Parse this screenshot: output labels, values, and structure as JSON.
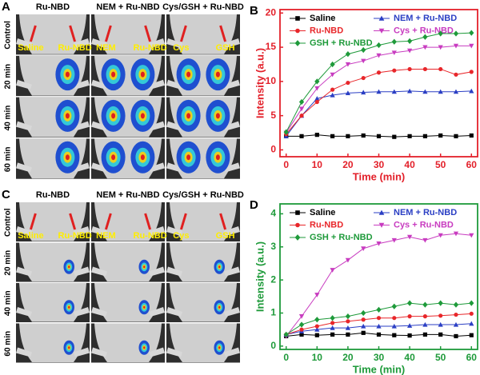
{
  "image_panels": [
    {
      "label": "A",
      "columns": [
        "Ru-NBD",
        "NEM + Ru-NBD",
        "Cys/GSH + Ru-NBD"
      ],
      "rows": [
        "Control",
        "20 min",
        "40 min",
        "60 min"
      ],
      "site_labels": [
        "Saline",
        "Ru-NBD",
        "NEM",
        "Ru-NBD",
        "Cys",
        "GSH"
      ]
    },
    {
      "label": "C",
      "columns": [
        "Ru-NBD",
        "NEM + Ru-NBD",
        "Cys/GSH + Ru-NBD"
      ],
      "rows": [
        "Control",
        "20 min",
        "40 min",
        "60 min"
      ],
      "site_labels": [
        "Saline",
        "Ru-NBD",
        "NEM",
        "Ru-NBD",
        "Cys",
        "GSH"
      ]
    }
  ],
  "chart_data": [
    {
      "type": "line",
      "label": "B",
      "axis_color": "#e3202a",
      "xlabel": "Time (min)",
      "ylabel": "Intensity (a.u.)",
      "x": [
        0,
        5,
        10,
        15,
        20,
        25,
        30,
        35,
        40,
        45,
        50,
        55,
        60
      ],
      "xlim": [
        -2,
        62
      ],
      "xticks": [
        0,
        10,
        20,
        30,
        40,
        50,
        60
      ],
      "ylim": [
        -1,
        20.5
      ],
      "yticks": [
        0,
        5,
        10,
        15,
        20
      ],
      "legend": "upper left",
      "series": [
        {
          "name": "Saline",
          "color": "#000000",
          "marker": "square",
          "values": [
            2,
            2,
            2.2,
            2,
            2,
            2.1,
            2,
            1.9,
            2,
            2,
            2.1,
            2,
            2.1
          ]
        },
        {
          "name": "NEM + Ru-NBD",
          "color": "#2b3fc4",
          "marker": "triangle-up",
          "values": [
            2,
            5,
            7.5,
            8,
            8.3,
            8.4,
            8.5,
            8.5,
            8.6,
            8.5,
            8.5,
            8.5,
            8.6
          ]
        },
        {
          "name": "Ru-NBD",
          "color": "#e8262a",
          "marker": "circle",
          "values": [
            2.3,
            5,
            7,
            8.8,
            9.8,
            10.5,
            11.3,
            11.6,
            11.8,
            11.8,
            11.8,
            11,
            11.4
          ]
        },
        {
          "name": "Cys + Ru-NBD",
          "color": "#c83cc0",
          "marker": "triangle-down",
          "values": [
            2.5,
            6,
            9,
            11,
            12.5,
            13,
            13.8,
            14.2,
            14.5,
            15,
            15,
            15.2,
            15.2
          ]
        },
        {
          "name": "GSH + Ru-NBD",
          "color": "#1e9a3a",
          "marker": "diamond",
          "values": [
            2.6,
            7,
            10,
            12.5,
            14,
            14.6,
            15.3,
            15.8,
            15.9,
            16.5,
            17,
            17,
            17.1
          ]
        }
      ]
    },
    {
      "type": "line",
      "label": "D",
      "axis_color": "#1e9a3a",
      "xlabel": "Time (min)",
      "ylabel": "Intensity (a.u.)",
      "x": [
        0,
        5,
        10,
        15,
        20,
        25,
        30,
        35,
        40,
        45,
        50,
        55,
        60
      ],
      "xlim": [
        -2,
        62
      ],
      "xticks": [
        0,
        10,
        20,
        30,
        40,
        50,
        60
      ],
      "ylim": [
        -0.1,
        4.3
      ],
      "yticks": [
        0,
        1,
        2,
        3,
        4
      ],
      "legend": "upper left",
      "series": [
        {
          "name": "Saline",
          "color": "#000000",
          "marker": "square",
          "values": [
            0.3,
            0.35,
            0.33,
            0.35,
            0.35,
            0.4,
            0.35,
            0.33,
            0.32,
            0.35,
            0.35,
            0.3,
            0.33
          ]
        },
        {
          "name": "NEM + Ru-NBD",
          "color": "#2b3fc4",
          "marker": "triangle-up",
          "values": [
            0.35,
            0.45,
            0.5,
            0.55,
            0.55,
            0.6,
            0.6,
            0.6,
            0.62,
            0.65,
            0.65,
            0.65,
            0.68
          ]
        },
        {
          "name": "Ru-NBD",
          "color": "#e8262a",
          "marker": "circle",
          "values": [
            0.35,
            0.5,
            0.6,
            0.7,
            0.75,
            0.8,
            0.85,
            0.85,
            0.9,
            0.9,
            0.92,
            0.95,
            0.98
          ]
        },
        {
          "name": "Cys + Ru-NBD",
          "color": "#c83cc0",
          "marker": "triangle-down",
          "values": [
            0.3,
            0.9,
            1.55,
            2.3,
            2.6,
            2.95,
            3.1,
            3.2,
            3.3,
            3.2,
            3.35,
            3.4,
            3.35
          ]
        },
        {
          "name": "GSH + Ru-NBD",
          "color": "#1e9a3a",
          "marker": "diamond",
          "values": [
            0.35,
            0.65,
            0.8,
            0.85,
            0.9,
            1.0,
            1.1,
            1.2,
            1.3,
            1.25,
            1.3,
            1.25,
            1.3
          ]
        }
      ]
    }
  ]
}
